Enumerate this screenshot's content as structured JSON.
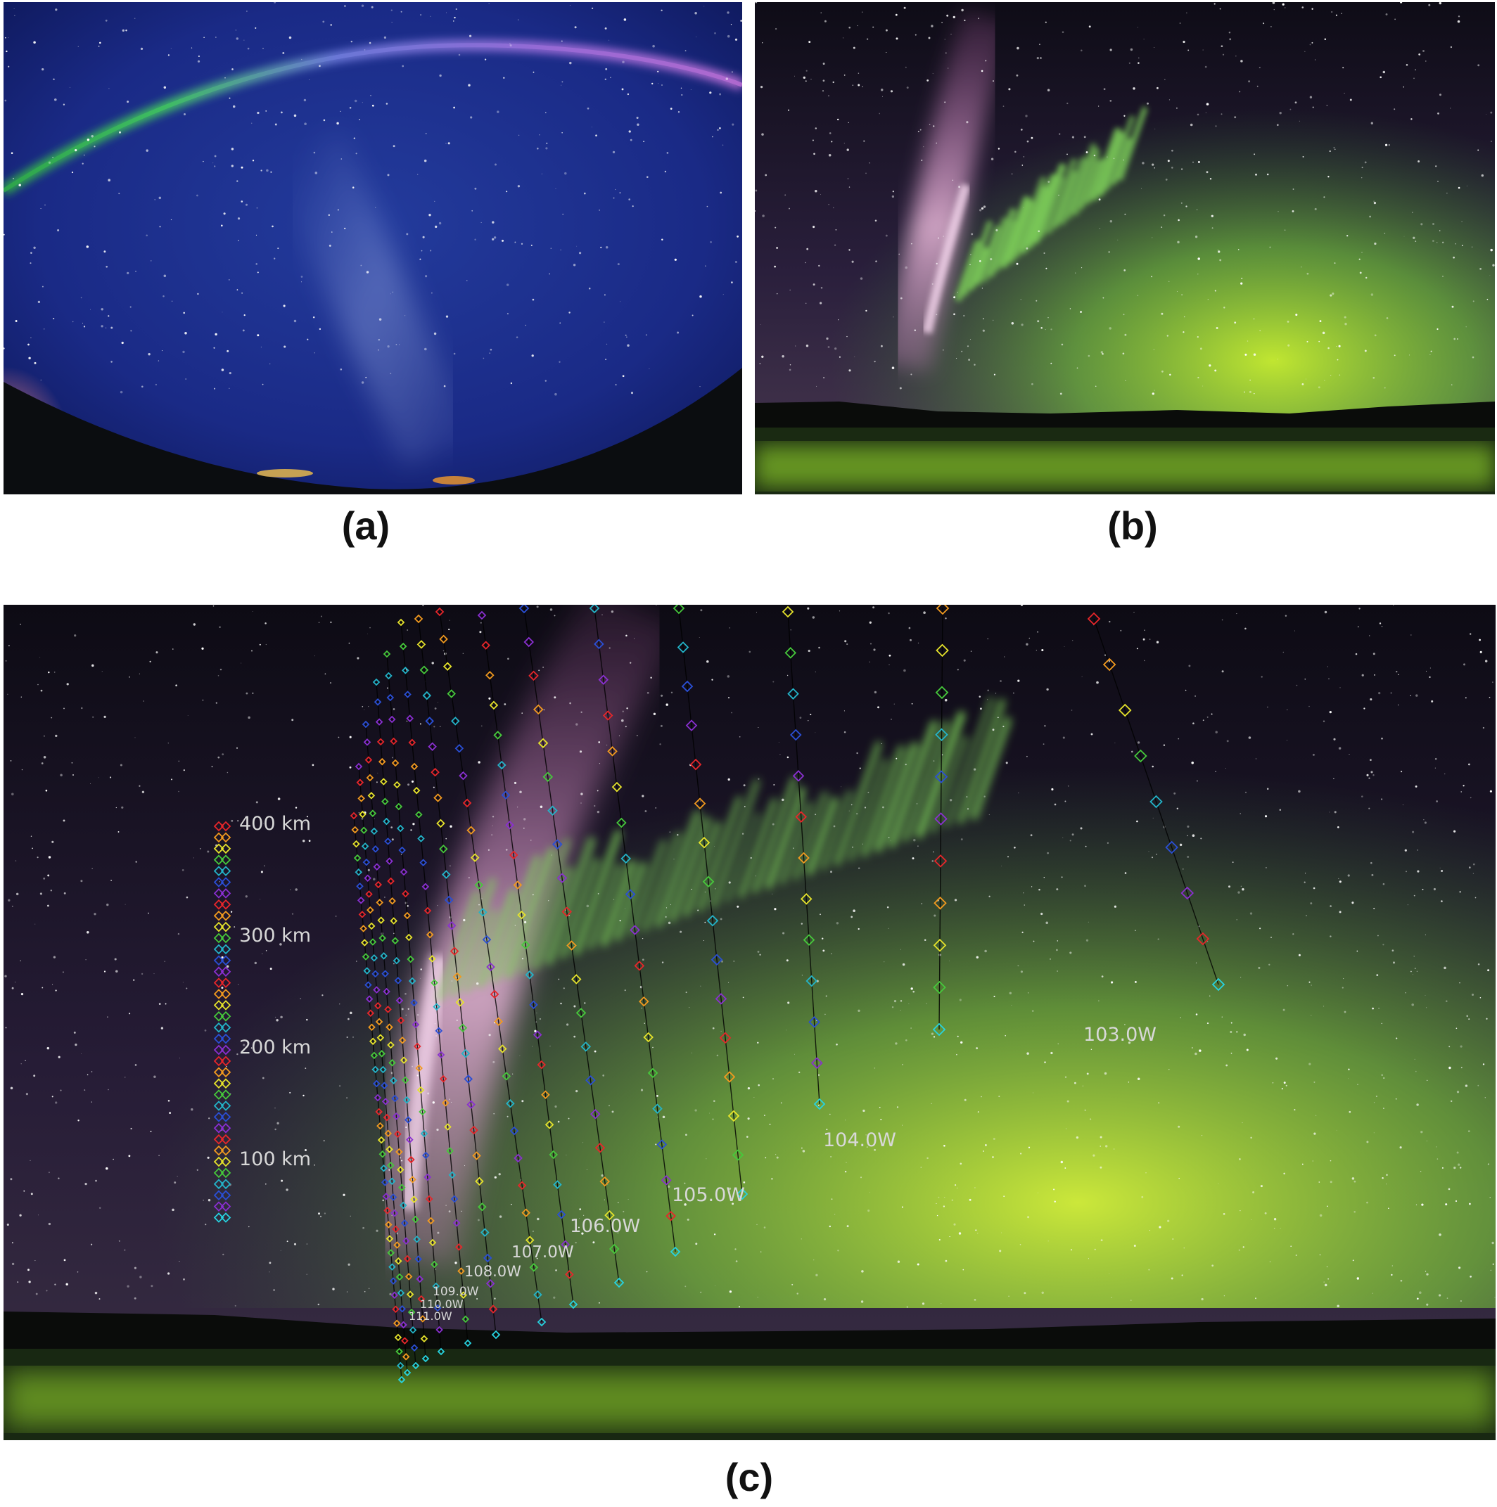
{
  "figure": {
    "panels": [
      {
        "id": "a",
        "label": "(a)"
      },
      {
        "id": "b",
        "label": "(b)"
      },
      {
        "id": "c",
        "label": "(c)"
      }
    ]
  },
  "panel_c": {
    "scale_labels": [
      "400 km",
      "300 km",
      "200 km",
      "100 km"
    ],
    "longitude_labels": [
      "103.0W",
      "104.0W",
      "105.0W",
      "106.0W",
      "107.0W",
      "108.0W",
      "109.0W",
      "110.0W",
      "111.0W"
    ],
    "marker_colors": [
      "#e8262a",
      "#f29a1f",
      "#e6e32b",
      "#46c93b",
      "#23b4c9",
      "#2a4fd6",
      "#8a2fd1"
    ],
    "end_marker_color": "#27d3e0"
  }
}
